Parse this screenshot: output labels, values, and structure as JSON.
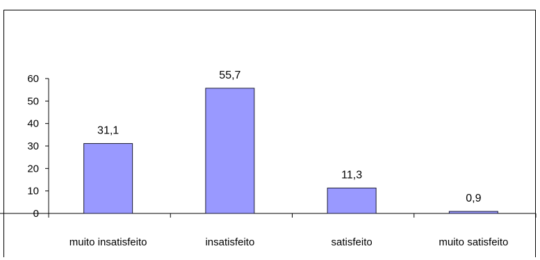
{
  "chart_data": {
    "type": "bar",
    "categories": [
      "muito insatisfeito",
      "insatisfeito",
      "satisfeito",
      "muito satisfeito"
    ],
    "values": [
      31.1,
      55.7,
      11.3,
      0.9
    ],
    "value_labels": [
      "31,1",
      "55,7",
      "11,3",
      "0,9"
    ],
    "title": "",
    "xlabel": "",
    "ylabel": "",
    "ylim": [
      0,
      60
    ],
    "yticks": [
      0,
      10,
      20,
      30,
      40,
      50,
      60
    ],
    "grid": false,
    "legend": "none",
    "colors": {
      "bar_fill": "#9999ff",
      "bar_stroke": "#1a1a33",
      "axis": "#000000"
    }
  }
}
